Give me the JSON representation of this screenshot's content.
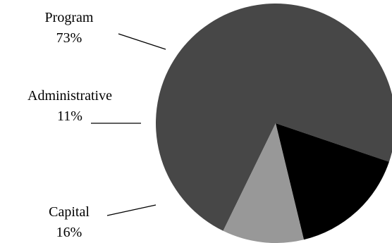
{
  "chart_data": {
    "type": "pie",
    "title": "",
    "slices": [
      {
        "label": "Program",
        "value": 73,
        "value_label": "73%",
        "color": "#474747"
      },
      {
        "label": "Capital",
        "value": 16,
        "value_label": "16%",
        "color": "#000000"
      },
      {
        "label": "Administrative",
        "value": 11,
        "value_label": "11%",
        "color": "#989898"
      }
    ],
    "legend": "none",
    "labels_outside": true
  }
}
